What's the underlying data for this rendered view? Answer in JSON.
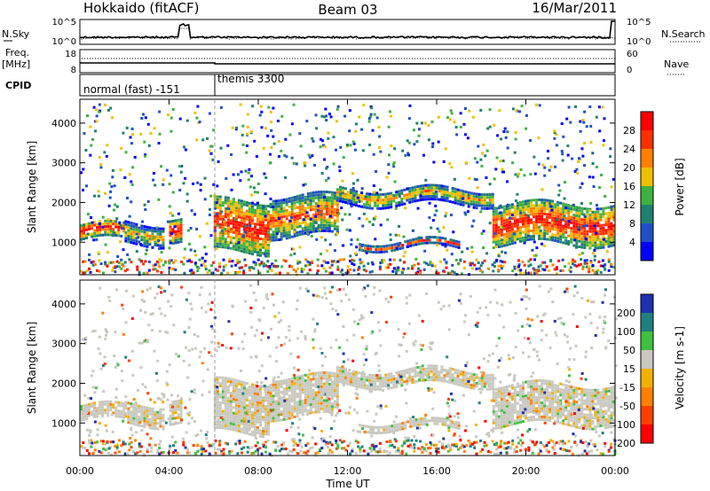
{
  "header": {
    "station": "Hokkaido (fitACF)",
    "beam": "Beam 03",
    "date": "16/Mar/2011"
  },
  "top_panels": {
    "nsky_label": "N.Sky",
    "nsky_ticks": [
      "10^5",
      "10^0"
    ],
    "nsearch_label": "N.Search",
    "freq_label": "Freq.",
    "freq_unit": "[MHz]",
    "freq_ticks": [
      "18",
      "8"
    ],
    "nave_label": "Nave",
    "nave_ticks": [
      "60",
      "0"
    ],
    "cpid_label": "CPID",
    "cpid_segments": [
      {
        "label": "normal (fast) -151",
        "start_hour": 0,
        "end_hour": 6.0
      },
      {
        "label": "themis 3300",
        "start_hour": 6.0,
        "end_hour": 24
      }
    ]
  },
  "chart_data": [
    {
      "type": "heatmap",
      "name": "power",
      "ylabel": "Slant Range [km]",
      "yticks": [
        1000,
        2000,
        3000,
        4000
      ],
      "ylim": [
        180,
        4600
      ],
      "colorbar_label": "Power [dB]",
      "colorbar_ticks": [
        4,
        8,
        12,
        16,
        20,
        24,
        28
      ],
      "colors": [
        "#0000ff",
        "#2050c8",
        "#208070",
        "#40b040",
        "#f0c000",
        "#ff8000",
        "#ff3000",
        "#ff0000"
      ],
      "bands": [
        {
          "t0": 0.0,
          "t1": 2.0,
          "r_low": 1100,
          "r_high": 1500,
          "level": 7
        },
        {
          "t0": 2.0,
          "t1": 3.8,
          "r_low": 1000,
          "r_high": 1500,
          "level": 5
        },
        {
          "t0": 4.0,
          "t1": 4.6,
          "r_low": 1100,
          "r_high": 1700,
          "level": 7
        },
        {
          "t0": 6.0,
          "t1": 8.5,
          "r_low": 800,
          "r_high": 2100,
          "level": 7
        },
        {
          "t0": 8.5,
          "t1": 11.5,
          "r_low": 1200,
          "r_high": 2200,
          "level": 6
        },
        {
          "t0": 11.5,
          "t1": 18.5,
          "r_low": 2000,
          "r_high": 2400,
          "level": 5
        },
        {
          "t0": 12.5,
          "t1": 17.0,
          "r_low": 900,
          "r_high": 1050,
          "level": 6
        },
        {
          "t0": 18.5,
          "t1": 24.0,
          "r_low": 1000,
          "r_high": 2000,
          "level": 7
        }
      ]
    },
    {
      "type": "heatmap",
      "name": "velocity",
      "ylabel": "Slant Range [km]",
      "yticks": [
        1000,
        2000,
        3000,
        4000
      ],
      "ylim": [
        180,
        4600
      ],
      "colorbar_label": "Velocity [m s-1]",
      "colorbar_ticks": [
        200,
        100,
        50,
        15,
        -15,
        -50,
        -100,
        -200
      ],
      "colors": [
        "#2030b0",
        "#208080",
        "#40c040",
        "#c8c8c0",
        "#f0b000",
        "#ff8000",
        "#ff4000",
        "#ff0000"
      ],
      "xlabel": "Time UT",
      "xticks": [
        "00:00",
        "04:00",
        "08:00",
        "12:00",
        "16:00",
        "20:00",
        "00:00"
      ],
      "xlim": [
        0,
        24
      ]
    }
  ]
}
